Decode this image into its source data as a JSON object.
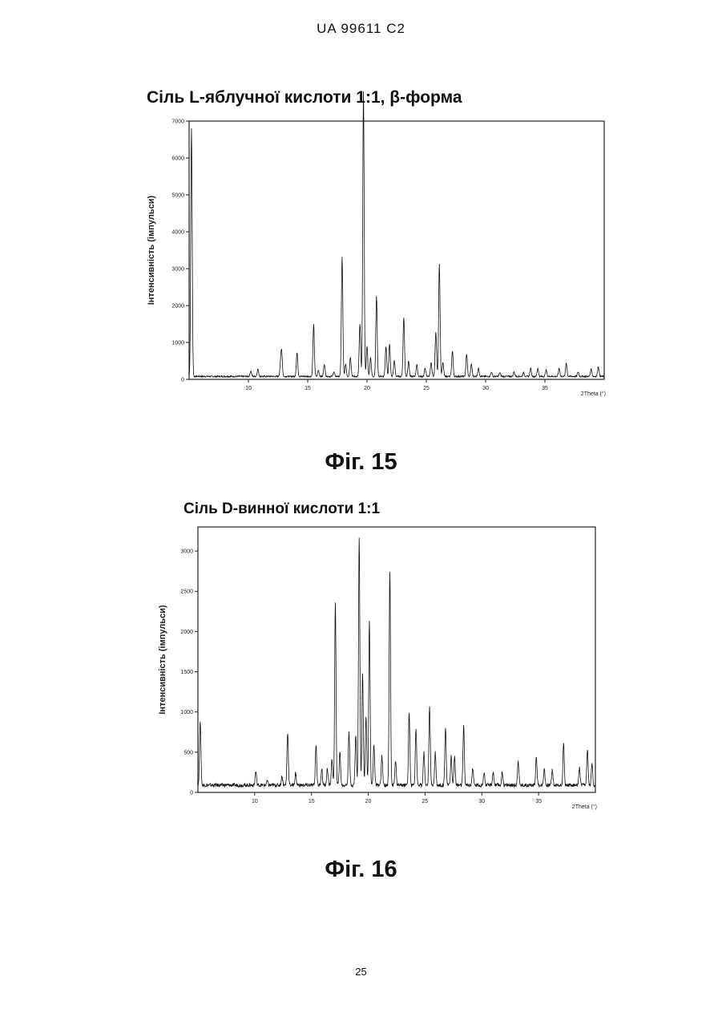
{
  "header": {
    "doc_id": "UA   99611   C2"
  },
  "page_number": "25",
  "chart_data": [
    {
      "type": "line",
      "title": "Сіль L-яблучної кислоти 1:1, β-форма",
      "figure_label": "Фіг. 15",
      "ylabel": "Інтенсивність (імпульси)",
      "xlabel": "2Theta (°)",
      "xlim": [
        5,
        40
      ],
      "ylim": [
        0,
        7000
      ],
      "xticks": [
        10,
        15,
        20,
        25,
        30,
        35
      ],
      "yticks": [
        0,
        1000,
        2000,
        3000,
        4000,
        5000,
        6000,
        7000
      ],
      "baseline": 80,
      "peaks": [
        [
          5.2,
          6800
        ],
        [
          10.2,
          230
        ],
        [
          10.8,
          280
        ],
        [
          12.7,
          350
        ],
        [
          12.8,
          760
        ],
        [
          14.1,
          720
        ],
        [
          15.5,
          1480
        ],
        [
          15.9,
          250
        ],
        [
          16.4,
          420
        ],
        [
          17.2,
          200
        ],
        [
          17.9,
          3320
        ],
        [
          18.2,
          420
        ],
        [
          18.6,
          620
        ],
        [
          19.4,
          1500
        ],
        [
          19.7,
          7800
        ],
        [
          20.0,
          900
        ],
        [
          20.3,
          600
        ],
        [
          20.8,
          2250
        ],
        [
          21.6,
          900
        ],
        [
          21.9,
          950
        ],
        [
          22.3,
          500
        ],
        [
          23.1,
          1680
        ],
        [
          23.5,
          500
        ],
        [
          24.2,
          400
        ],
        [
          24.9,
          300
        ],
        [
          25.4,
          450
        ],
        [
          25.8,
          1300
        ],
        [
          26.1,
          3150
        ],
        [
          26.4,
          450
        ],
        [
          27.2,
          780
        ],
        [
          28.4,
          680
        ],
        [
          28.8,
          420
        ],
        [
          29.4,
          300
        ],
        [
          30.5,
          200
        ],
        [
          31.2,
          180
        ],
        [
          32.4,
          200
        ],
        [
          33.2,
          180
        ],
        [
          33.8,
          300
        ],
        [
          34.4,
          300
        ],
        [
          35.1,
          250
        ],
        [
          36.2,
          300
        ],
        [
          36.8,
          450
        ],
        [
          37.8,
          200
        ],
        [
          38.9,
          280
        ],
        [
          39.5,
          350
        ]
      ]
    },
    {
      "type": "line",
      "title": "Сіль D-винної кислоти 1:1",
      "figure_label": "Фіг. 16",
      "ylabel": "Інтенсивність (імпульси)",
      "xlabel": "2Theta (°)",
      "xlim": [
        5,
        40
      ],
      "ylim": [
        0,
        3300
      ],
      "xticks": [
        10,
        15,
        20,
        25,
        30,
        35
      ],
      "yticks": [
        0,
        500,
        1000,
        1500,
        2000,
        2500,
        3000
      ],
      "baseline": 90,
      "peaks": [
        [
          5.2,
          900
        ],
        [
          10.1,
          260
        ],
        [
          11.1,
          140
        ],
        [
          12.4,
          200
        ],
        [
          12.9,
          750
        ],
        [
          13.6,
          240
        ],
        [
          15.4,
          600
        ],
        [
          15.9,
          300
        ],
        [
          16.4,
          300
        ],
        [
          16.8,
          420
        ],
        [
          17.1,
          2350
        ],
        [
          17.5,
          500
        ],
        [
          18.3,
          760
        ],
        [
          18.9,
          720
        ],
        [
          19.2,
          3180
        ],
        [
          19.5,
          1500
        ],
        [
          19.8,
          950
        ],
        [
          20.1,
          2130
        ],
        [
          20.5,
          600
        ],
        [
          21.2,
          450
        ],
        [
          21.9,
          2750
        ],
        [
          22.4,
          400
        ],
        [
          23.6,
          1000
        ],
        [
          24.2,
          800
        ],
        [
          24.9,
          500
        ],
        [
          25.4,
          1050
        ],
        [
          25.9,
          500
        ],
        [
          26.8,
          820
        ],
        [
          27.3,
          450
        ],
        [
          27.6,
          450
        ],
        [
          28.4,
          820
        ],
        [
          29.2,
          300
        ],
        [
          30.2,
          250
        ],
        [
          31.0,
          250
        ],
        [
          31.8,
          250
        ],
        [
          33.2,
          400
        ],
        [
          34.8,
          450
        ],
        [
          35.5,
          300
        ],
        [
          36.2,
          280
        ],
        [
          37.2,
          600
        ],
        [
          38.6,
          300
        ],
        [
          39.3,
          520
        ],
        [
          39.7,
          350
        ]
      ]
    }
  ]
}
